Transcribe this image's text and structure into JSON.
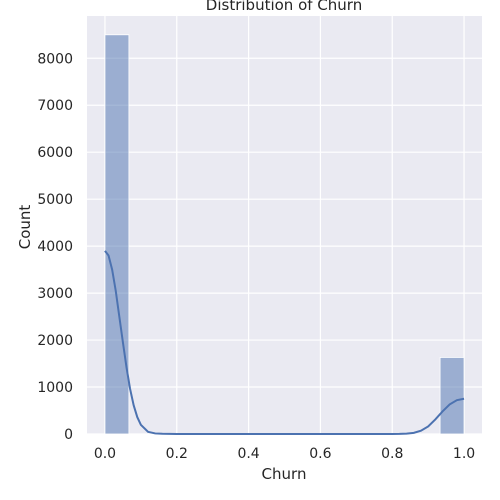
{
  "chart_data": {
    "type": "bar",
    "title": "Distribution of Churn",
    "xlabel": "Churn",
    "ylabel": "Count",
    "style": "seaborn darkgrid histogram with KDE",
    "colors": {
      "background": "#eaeaf2",
      "grid": "#ffffff",
      "bar_fill": "#4c72b0",
      "bar_opacity": 0.5,
      "kde_line": "#4c72b0"
    },
    "grid": true,
    "xlim": [
      -0.05,
      1.05
    ],
    "ylim": [
      0,
      8900
    ],
    "x_ticks": [
      0.0,
      0.2,
      0.4,
      0.6,
      0.8,
      1.0
    ],
    "x_tick_labels": [
      "0.0",
      "0.2",
      "0.4",
      "0.6",
      "0.8",
      "1.0"
    ],
    "y_ticks": [
      0,
      1000,
      2000,
      3000,
      4000,
      5000,
      6000,
      7000,
      8000
    ],
    "y_tick_labels": [
      "0",
      "1000",
      "2000",
      "3000",
      "4000",
      "5000",
      "6000",
      "7000",
      "8000"
    ],
    "bin_width": 0.0667,
    "bars": [
      {
        "x0": 0.0,
        "x1": 0.0667,
        "value": 8500
      },
      {
        "x0": 0.9333,
        "x1": 1.0,
        "value": 1630
      }
    ],
    "kde": {
      "x": [
        0.0,
        0.01,
        0.02,
        0.03,
        0.04,
        0.05,
        0.06,
        0.07,
        0.08,
        0.09,
        0.1,
        0.12,
        0.14,
        0.16,
        0.18,
        0.2,
        0.25,
        0.3,
        0.4,
        0.5,
        0.6,
        0.7,
        0.75,
        0.8,
        0.82,
        0.84,
        0.86,
        0.88,
        0.9,
        0.92,
        0.94,
        0.96,
        0.98,
        1.0
      ],
      "y": [
        3900,
        3800,
        3500,
        3050,
        2500,
        1950,
        1420,
        960,
        610,
        360,
        195,
        45,
        12,
        5,
        2,
        0,
        0,
        0,
        0,
        0,
        0,
        0,
        0,
        0,
        2,
        8,
        25,
        70,
        160,
        310,
        480,
        630,
        720,
        750
      ]
    }
  }
}
